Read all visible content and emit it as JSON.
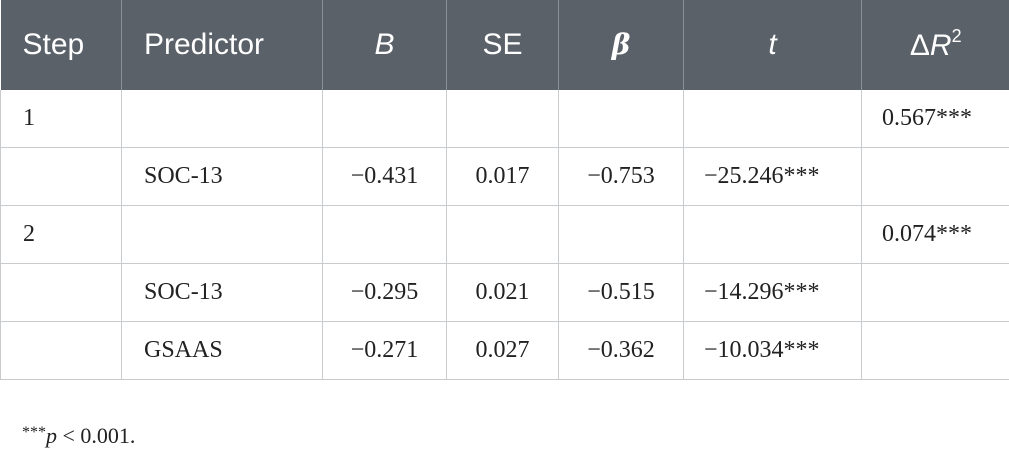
{
  "table": {
    "headers": {
      "step": "Step",
      "predictor": "Predictor",
      "b": "B",
      "se": "SE",
      "beta": "β",
      "t": "t",
      "delta_r2_prefix": "Δ",
      "delta_r2_var": "R",
      "delta_r2_sup": "2"
    },
    "rows": [
      {
        "step": "1",
        "predictor": "",
        "b": "",
        "se": "",
        "beta": "",
        "t": "",
        "delta_r2": "0.567***"
      },
      {
        "step": "",
        "predictor": "SOC-13",
        "b": "−0.431",
        "se": "0.017",
        "beta": "−0.753",
        "t": "−25.246***",
        "delta_r2": ""
      },
      {
        "step": "2",
        "predictor": "",
        "b": "",
        "se": "",
        "beta": "",
        "t": "",
        "delta_r2": "0.074***"
      },
      {
        "step": "",
        "predictor": "SOC-13",
        "b": "−0.295",
        "se": "0.021",
        "beta": "−0.515",
        "t": "−14.296***",
        "delta_r2": ""
      },
      {
        "step": "",
        "predictor": "GSAAS",
        "b": "−0.271",
        "se": "0.027",
        "beta": "−0.362",
        "t": "−10.034***",
        "delta_r2": ""
      }
    ]
  },
  "footnote": {
    "stars": "***",
    "p": "p",
    "rest": " < 0.001."
  },
  "colors": {
    "header_bg": "#5a6169",
    "header_text": "#ffffff",
    "border": "#c9cccf",
    "text": "#222222"
  }
}
